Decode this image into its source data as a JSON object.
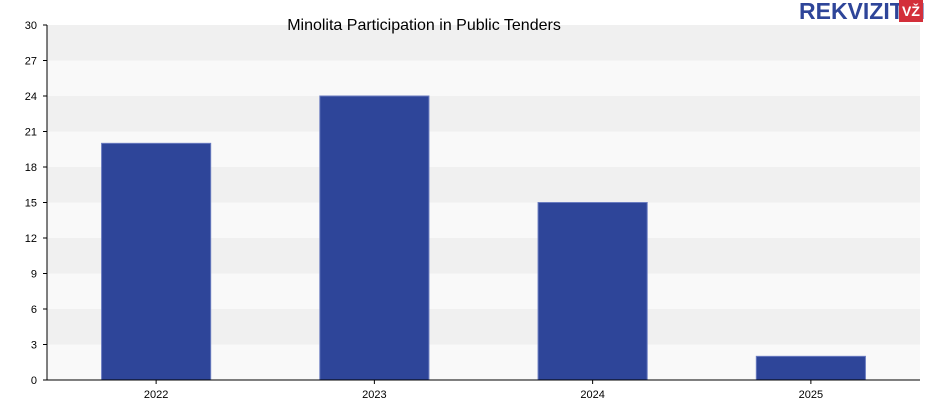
{
  "chart_data": {
    "type": "bar",
    "title": "Minolita Participation in Public Tenders",
    "xlabel": "",
    "ylabel": "",
    "categories": [
      "2022",
      "2023",
      "2024",
      "2025"
    ],
    "values": [
      20,
      24,
      15,
      2
    ],
    "ylim": [
      0,
      30
    ],
    "yticks": [
      "0",
      "3",
      "6",
      "9",
      "12",
      "15",
      "18",
      "21",
      "24",
      "27",
      "30"
    ],
    "grid": "horizontal-bands",
    "legend": "none",
    "colors": {
      "bar": "#2e4599",
      "band_light": "#f9f9f9",
      "band_dark": "#f0f0f0",
      "axis": "#000000"
    }
  },
  "logo": {
    "text": "REKVIZITAI",
    "badge": "VŽ",
    "text_color": "#2e4599",
    "badge_color": "#d32f3a"
  }
}
